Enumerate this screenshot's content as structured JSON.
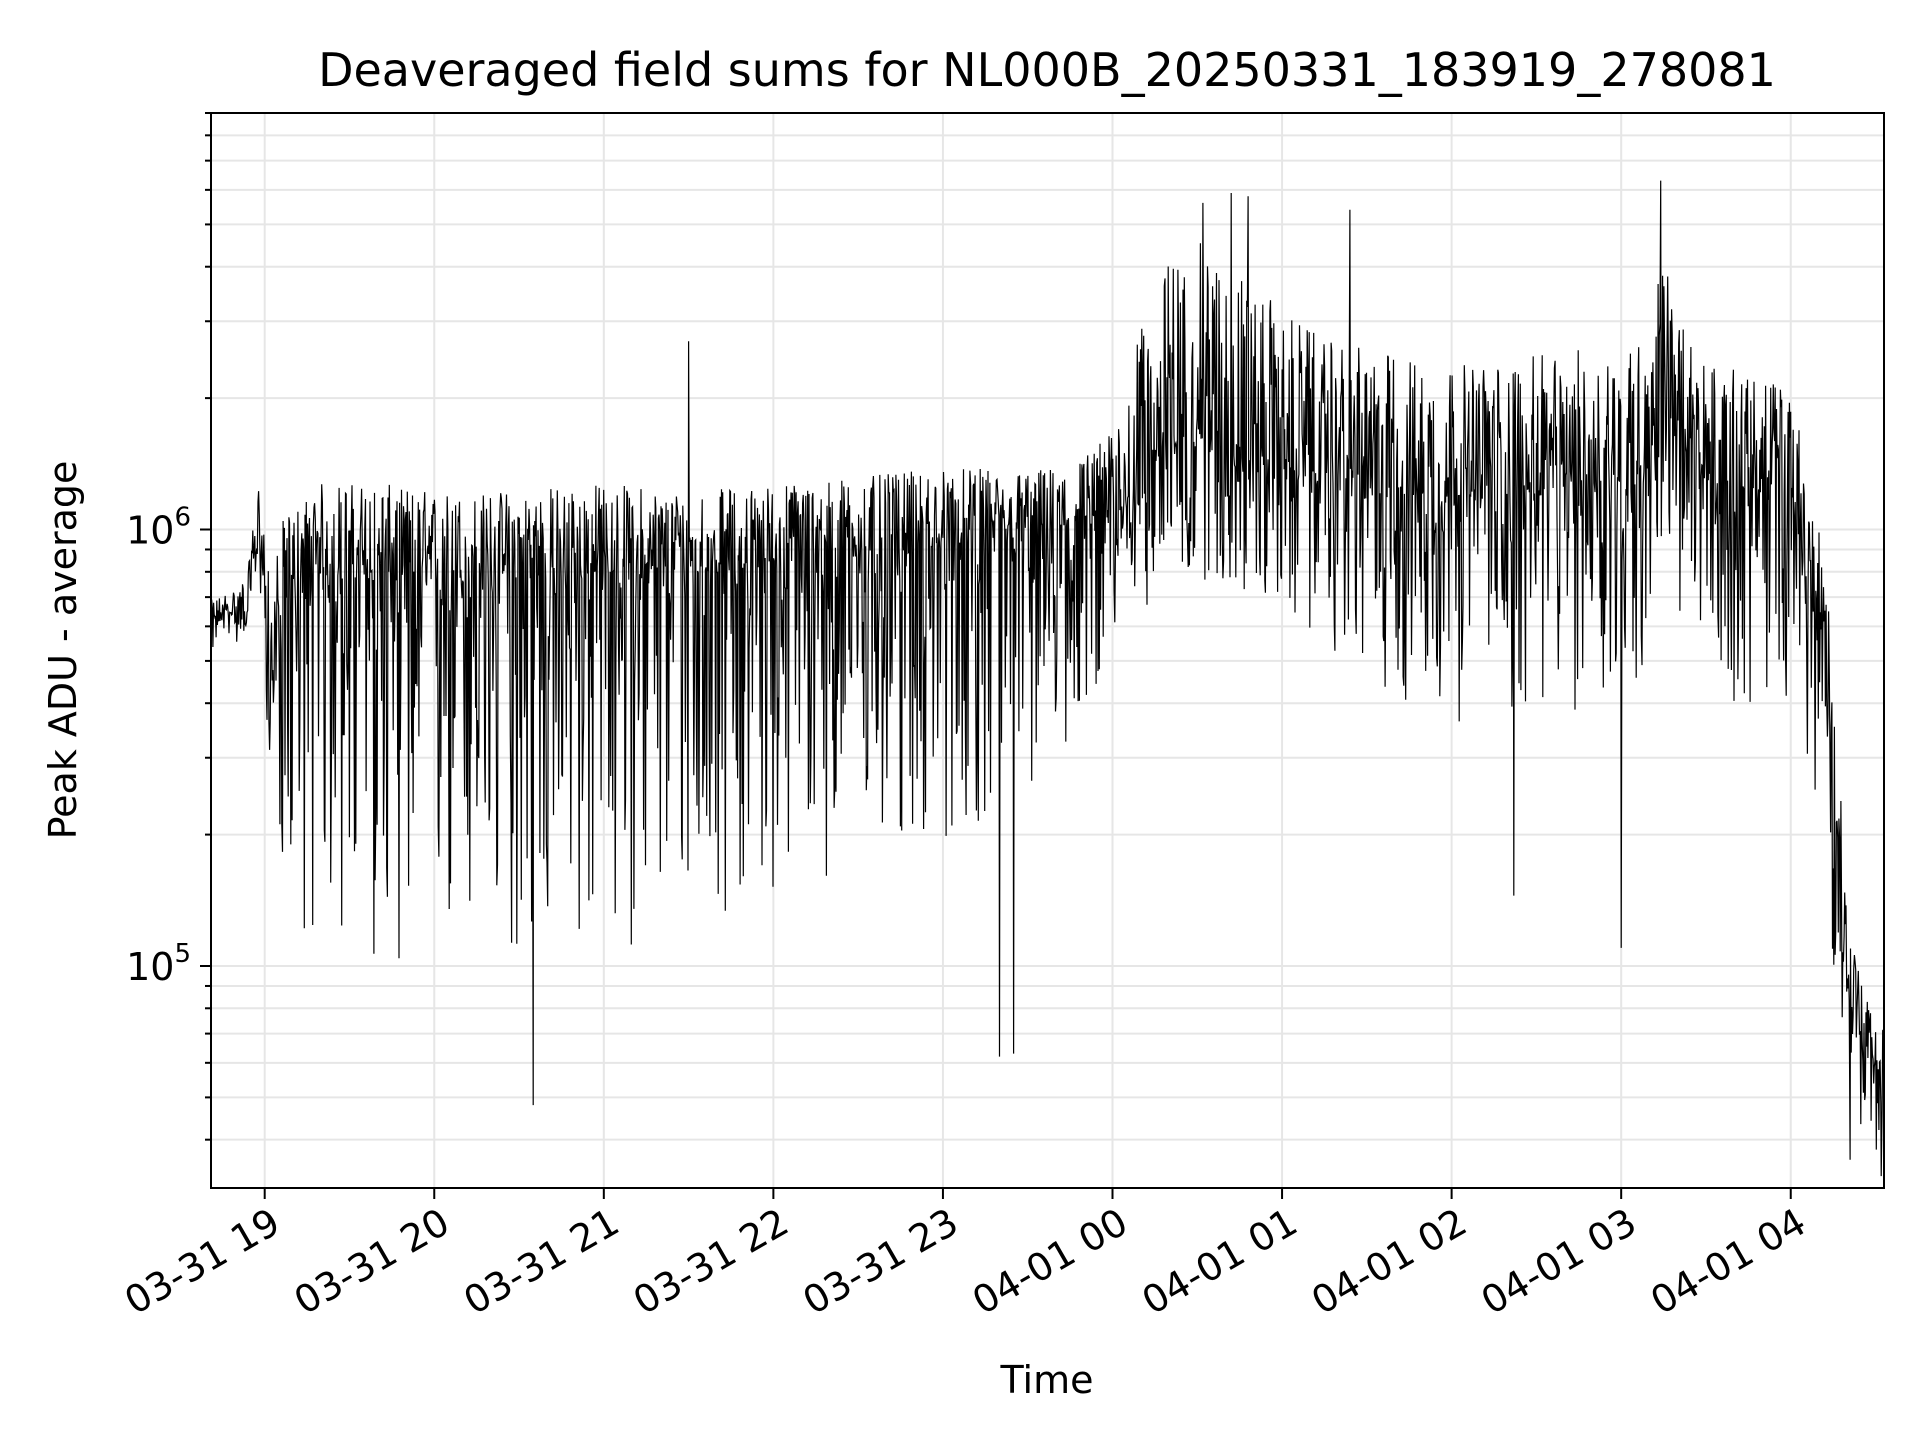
{
  "chart_data": {
    "type": "line",
    "title": "Deaveraged field sums for NL000B_20250331_183919_278081",
    "xlabel": "Time",
    "ylabel": "Peak ADU - average",
    "yscale": "log",
    "grid": true,
    "line_color": "#000000",
    "grid_color": "#e6e6e6",
    "xlim": [
      "2025-03-31 18:41",
      "2025-04-01 04:33"
    ],
    "ylim": [
      31000,
      9000000
    ],
    "x_ticks": [
      {
        "value": "2025-03-31 19:00",
        "label": "03-31 19"
      },
      {
        "value": "2025-03-31 20:00",
        "label": "03-31 20"
      },
      {
        "value": "2025-03-31 21:00",
        "label": "03-31 21"
      },
      {
        "value": "2025-03-31 22:00",
        "label": "03-31 22"
      },
      {
        "value": "2025-03-31 23:00",
        "label": "03-31 23"
      },
      {
        "value": "2025-04-01 00:00",
        "label": "04-01 00"
      },
      {
        "value": "2025-04-01 01:00",
        "label": "04-01 01"
      },
      {
        "value": "2025-04-01 02:00",
        "label": "04-01 02"
      },
      {
        "value": "2025-04-01 03:00",
        "label": "04-01 03"
      },
      {
        "value": "2025-04-01 04:00",
        "label": "04-01 04"
      }
    ],
    "y_ticks": [
      {
        "value": 100000,
        "base": "10",
        "exp": "5"
      },
      {
        "value": 1000000,
        "base": "10",
        "exp": "6"
      }
    ],
    "series": [
      {
        "x": [
          "2025-03-31 18:41",
          "2025-03-31 18:46",
          "2025-03-31 18:50",
          "2025-03-31 18:54",
          "2025-03-31 18:58",
          "2025-03-31 19:02",
          "2025-03-31 19:06",
          "2025-03-31 19:10",
          "2025-03-31 19:15",
          "2025-03-31 19:20",
          "2025-03-31 19:30",
          "2025-03-31 19:40",
          "2025-03-31 19:50",
          "2025-03-31 20:00",
          "2025-03-31 20:15",
          "2025-03-31 20:30",
          "2025-03-31 20:45",
          "2025-03-31 21:00",
          "2025-03-31 21:15",
          "2025-03-31 21:30",
          "2025-03-31 21:45",
          "2025-03-31 22:00",
          "2025-03-31 22:15",
          "2025-03-31 22:30",
          "2025-03-31 22:45",
          "2025-03-31 23:00",
          "2025-03-31 23:15",
          "2025-03-31 23:30",
          "2025-03-31 23:45",
          "2025-04-01 00:00",
          "2025-04-01 00:10",
          "2025-04-01 00:20",
          "2025-04-01 00:30",
          "2025-04-01 00:40",
          "2025-04-01 00:50",
          "2025-04-01 01:00",
          "2025-04-01 01:15",
          "2025-04-01 01:30",
          "2025-04-01 01:45",
          "2025-04-01 02:00",
          "2025-04-01 02:15",
          "2025-04-01 02:30",
          "2025-04-01 02:45",
          "2025-04-01 03:00",
          "2025-04-01 03:10",
          "2025-04-01 03:15",
          "2025-04-01 03:20",
          "2025-04-01 03:30",
          "2025-04-01 03:45",
          "2025-04-01 04:00",
          "2025-04-01 04:05",
          "2025-04-01 04:10",
          "2025-04-01 04:15",
          "2025-04-01 04:20",
          "2025-04-01 04:25",
          "2025-04-01 04:30",
          "2025-04-01 04:33"
        ],
        "y": [
          600000,
          650000,
          640000,
          660000,
          1000000,
          420000,
          650000,
          700000,
          750000,
          800000,
          780000,
          800000,
          780000,
          770000,
          760000,
          780000,
          790000,
          800000,
          810000,
          820000,
          830000,
          850000,
          870000,
          880000,
          900000,
          920000,
          950000,
          980000,
          1000000,
          1050000,
          1300000,
          1600000,
          1700000,
          1600000,
          1500000,
          1400000,
          1350000,
          1300000,
          1250000,
          1200000,
          1200000,
          1250000,
          1300000,
          1300000,
          1400000,
          2200000,
          1500000,
          1300000,
          1250000,
          1200000,
          800000,
          600000,
          250000,
          90000,
          70000,
          60000,
          60000
        ],
        "spread_low": [
          0.85,
          0.9,
          0.85,
          0.9,
          0.75,
          0.55,
          0.25,
          0.2,
          0.15,
          0.15,
          0.13,
          0.12,
          0.13,
          0.13,
          0.12,
          0.13,
          0.13,
          0.13,
          0.14,
          0.15,
          0.16,
          0.17,
          0.18,
          0.19,
          0.2,
          0.2,
          0.22,
          0.25,
          0.3,
          0.5,
          0.5,
          0.45,
          0.45,
          0.45,
          0.45,
          0.45,
          0.4,
          0.35,
          0.3,
          0.3,
          0.3,
          0.3,
          0.28,
          0.3,
          0.35,
          0.4,
          0.4,
          0.35,
          0.3,
          0.35,
          0.35,
          0.4,
          0.4,
          0.5,
          0.6,
          0.6,
          0.6
        ],
        "spread_high": [
          1.15,
          1.1,
          1.15,
          1.2,
          1.3,
          1.6,
          1.6,
          1.6,
          1.6,
          1.6,
          1.65,
          1.6,
          1.6,
          1.6,
          1.6,
          1.6,
          1.6,
          1.6,
          1.55,
          1.5,
          1.5,
          1.5,
          1.5,
          1.5,
          1.5,
          1.5,
          1.45,
          1.4,
          1.4,
          1.6,
          2.2,
          2.6,
          2.7,
          2.6,
          2.4,
          2.3,
          2.0,
          2.0,
          2.0,
          2.0,
          2.0,
          2.0,
          2.0,
          2.0,
          2.0,
          2.0,
          2.0,
          1.9,
          1.8,
          1.8,
          1.8,
          1.8,
          1.8,
          1.5,
          1.3,
          1.2,
          1.2
        ]
      }
    ],
    "spikes": [
      {
        "x": "2025-04-01 00:32",
        "y": 5600000
      },
      {
        "x": "2025-04-01 00:42",
        "y": 5900000
      },
      {
        "x": "2025-04-01 00:48",
        "y": 5800000
      },
      {
        "x": "2025-04-01 01:24",
        "y": 5400000
      },
      {
        "x": "2025-04-01 03:14",
        "y": 6300000
      },
      {
        "x": "2025-03-31 21:30",
        "y": 2700000
      },
      {
        "x": "2025-03-31 20:35",
        "y": 48000
      },
      {
        "x": "2025-03-31 23:20",
        "y": 62000
      },
      {
        "x": "2025-03-31 23:25",
        "y": 63000
      },
      {
        "x": "2025-04-01 02:22",
        "y": 145000
      },
      {
        "x": "2025-04-01 03:00",
        "y": 110000
      },
      {
        "x": "2025-04-01 04:21",
        "y": 36000
      },
      {
        "x": "2025-04-01 04:32",
        "y": 33000
      }
    ]
  }
}
